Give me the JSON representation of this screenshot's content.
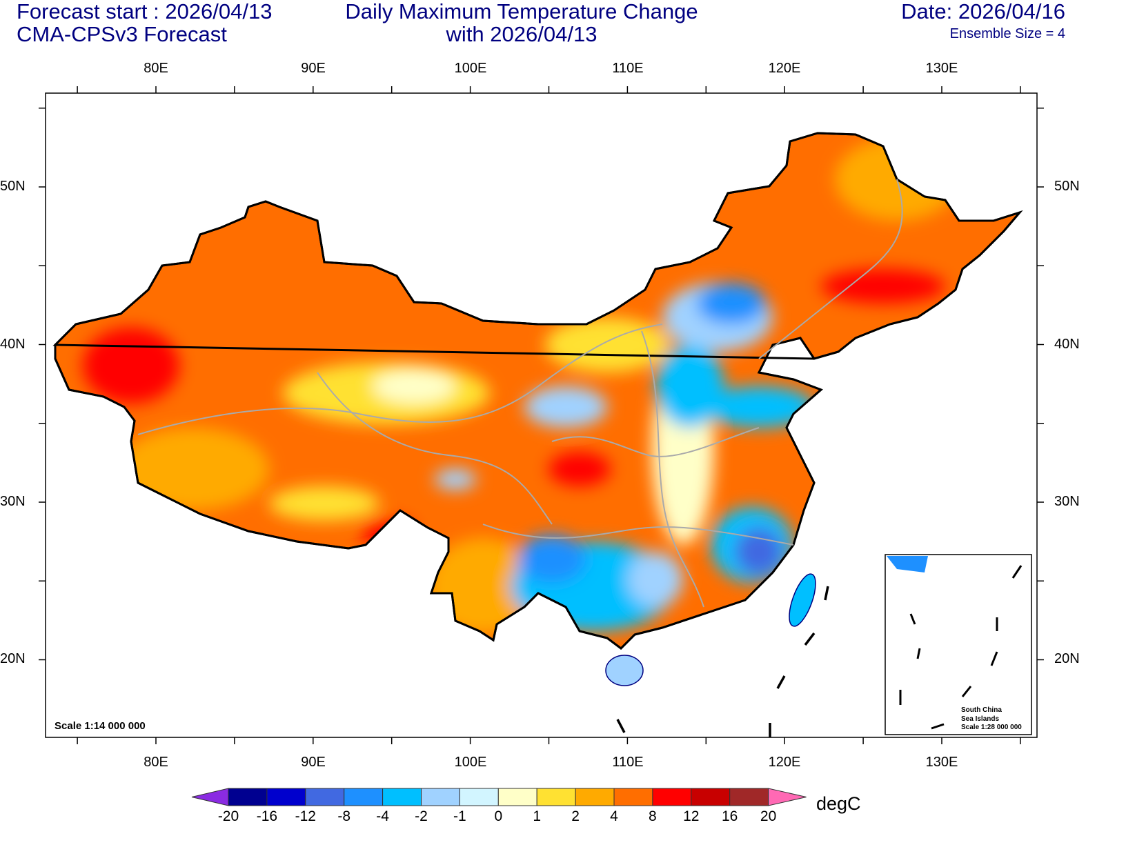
{
  "header": {
    "left_line1": "Forecast start : 2026/04/13",
    "left_line2": "CMA-CPSv3 Forecast",
    "center_line1": "Daily Maximum Temperature Change",
    "center_line2": "with 2026/04/13",
    "right_line1": "Date: 2026/04/16",
    "right_line2": "Ensemble Size = 4"
  },
  "axes": {
    "lon_labels": [
      "80E",
      "90E",
      "100E",
      "110E",
      "120E",
      "130E"
    ],
    "lat_labels": [
      "50N",
      "40N",
      "30N",
      "20N"
    ]
  },
  "map": {
    "scale_label": "Scale 1:14 000 000",
    "inset_line1": "South China",
    "inset_line2": "Sea Islands",
    "inset_line3": "Scale 1:28 000 000"
  },
  "colorbar": {
    "unit": "degC",
    "labels": [
      "-20",
      "-16",
      "-12",
      "-8",
      "-4",
      "-2",
      "-1",
      "0",
      "1",
      "2",
      "4",
      "8",
      "12",
      "16",
      "20"
    ],
    "colors": [
      "#000090",
      "#0000cd",
      "#4169e1",
      "#1e90ff",
      "#00bfff",
      "#a0d2ff",
      "#d2f5ff",
      "#ffffc8",
      "#ffe132",
      "#ffaa00",
      "#ff6e00",
      "#ff0000",
      "#c80000",
      "#a02828"
    ],
    "under_color": "#8a2be2",
    "over_color": "#ff69b4"
  }
}
